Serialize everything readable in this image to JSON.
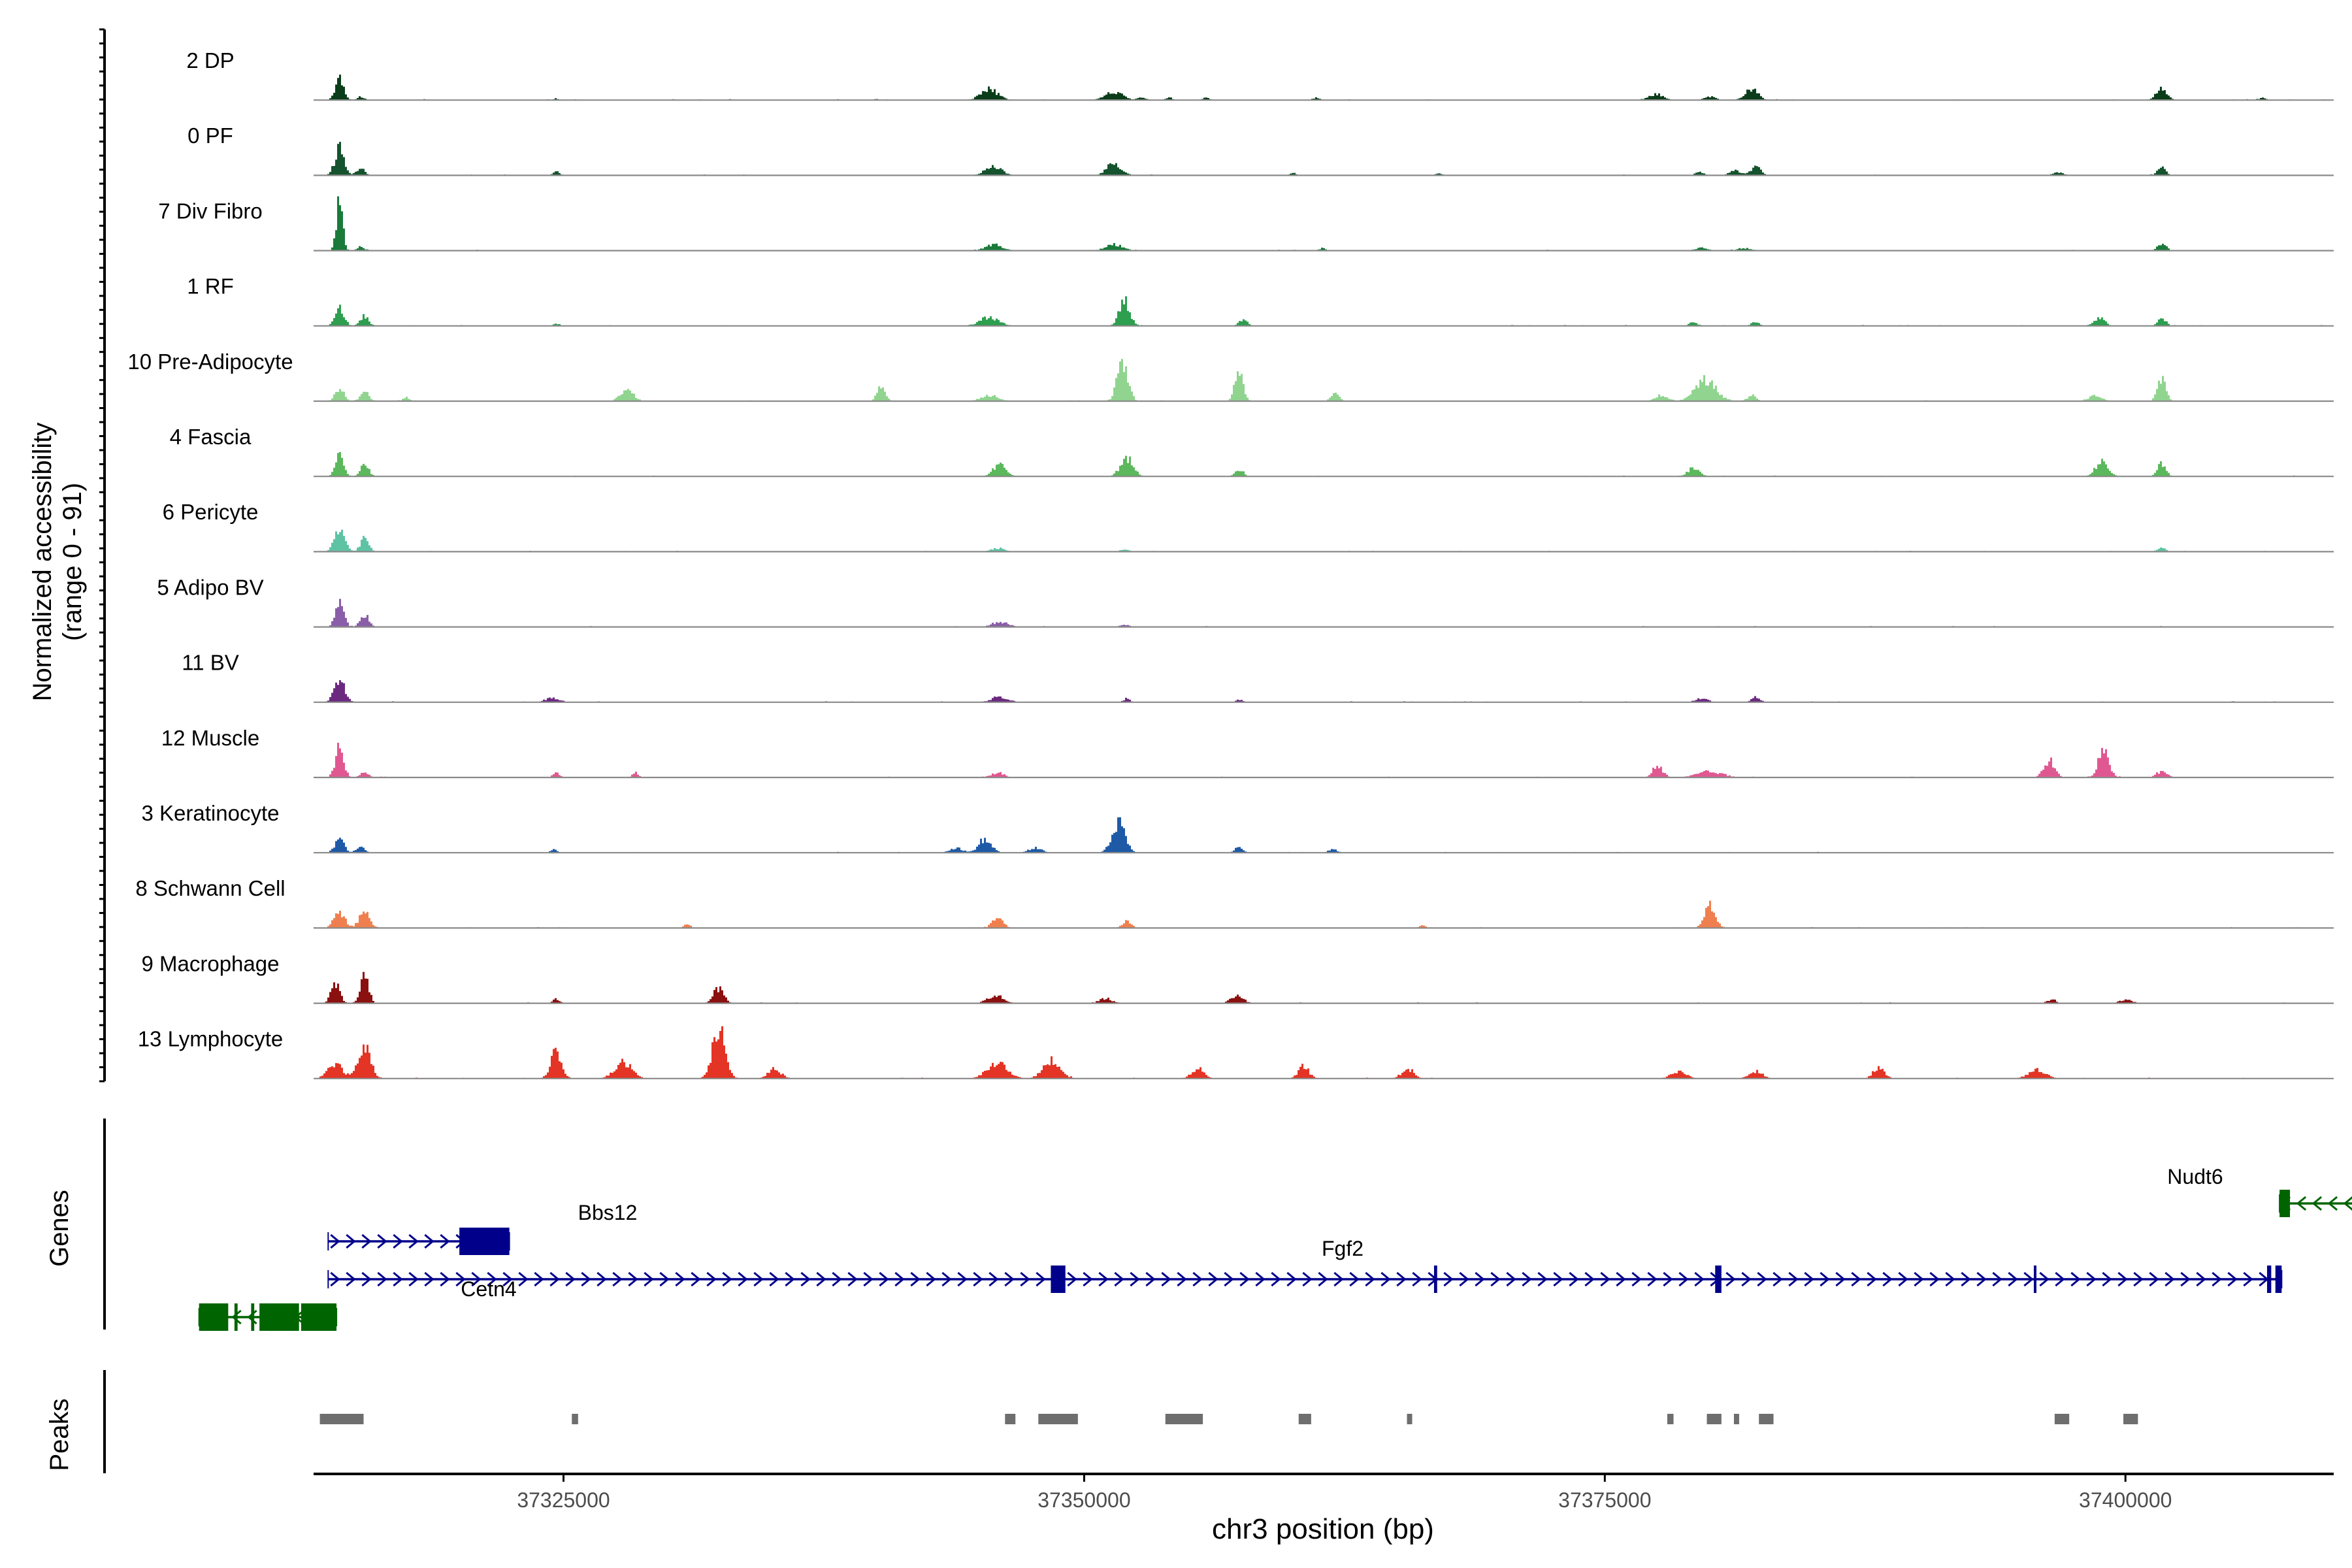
{
  "chart_data": {
    "type": "area",
    "title": "",
    "xlabel": "chr3 position (bp)",
    "ylabel_line1": "Normalized accessibility",
    "ylabel_line2": "(range 0 - 91)",
    "ylim": [
      0,
      91
    ],
    "xlim": [
      37313000,
      37410000
    ],
    "x_ticks": [
      37325000,
      37350000,
      37375000,
      37400000
    ],
    "x_tick_labels": [
      "37325000",
      "37350000",
      "37375000",
      "37400000"
    ],
    "panel_labels": {
      "genes": "Genes",
      "peaks": "Peaks"
    },
    "tracks": [
      {
        "name": "2 DP",
        "color": "#0b3d1a",
        "peaks": [
          [
            37314200,
            38,
            200
          ],
          [
            37315200,
            6,
            150
          ],
          [
            37324600,
            3,
            100
          ],
          [
            37340000,
            2,
            100
          ],
          [
            37345400,
            18,
            400
          ],
          [
            37351400,
            14,
            400
          ],
          [
            37352700,
            5,
            200
          ],
          [
            37354000,
            4,
            150
          ],
          [
            37355800,
            4,
            150
          ],
          [
            37361100,
            4,
            150
          ],
          [
            37377400,
            10,
            350
          ],
          [
            37380000,
            6,
            250
          ],
          [
            37382000,
            20,
            300
          ],
          [
            37401700,
            20,
            250
          ],
          [
            37406500,
            3,
            200
          ]
        ]
      },
      {
        "name": "0 PF",
        "color": "#14532d",
        "peaks": [
          [
            37314200,
            44,
            220
          ],
          [
            37315200,
            12,
            200
          ],
          [
            37324600,
            6,
            150
          ],
          [
            37345600,
            14,
            400
          ],
          [
            37351400,
            20,
            350
          ],
          [
            37360000,
            4,
            150
          ],
          [
            37367000,
            3,
            150
          ],
          [
            37379500,
            5,
            200
          ],
          [
            37381200,
            8,
            250
          ],
          [
            37382200,
            14,
            250
          ],
          [
            37396700,
            5,
            250
          ],
          [
            37401700,
            12,
            200
          ]
        ]
      },
      {
        "name": "7 Div Fibro",
        "color": "#1a7a3a",
        "peaks": [
          [
            37314200,
            80,
            150
          ],
          [
            37315200,
            6,
            150
          ],
          [
            37345600,
            10,
            400
          ],
          [
            37351400,
            10,
            400
          ],
          [
            37361400,
            4,
            150
          ],
          [
            37379600,
            5,
            300
          ],
          [
            37381700,
            4,
            300
          ],
          [
            37401700,
            12,
            200
          ]
        ]
      },
      {
        "name": "1 RF",
        "color": "#2e9e4f",
        "peaks": [
          [
            37314200,
            28,
            220
          ],
          [
            37315400,
            16,
            200
          ],
          [
            37324600,
            4,
            150
          ],
          [
            37345400,
            14,
            450
          ],
          [
            37351900,
            42,
            250
          ],
          [
            37357600,
            10,
            200
          ],
          [
            37379200,
            6,
            200
          ],
          [
            37382200,
            6,
            200
          ],
          [
            37398700,
            14,
            250
          ],
          [
            37401700,
            12,
            200
          ]
        ]
      },
      {
        "name": "10 Pre-Adipocyte",
        "color": "#90d490",
        "peaks": [
          [
            37314200,
            22,
            200
          ],
          [
            37315400,
            16,
            200
          ],
          [
            37317400,
            6,
            150
          ],
          [
            37328000,
            20,
            300
          ],
          [
            37340200,
            22,
            200
          ],
          [
            37345400,
            10,
            400
          ],
          [
            37351800,
            70,
            250
          ],
          [
            37357400,
            50,
            200
          ],
          [
            37362000,
            12,
            200
          ],
          [
            37377700,
            10,
            300
          ],
          [
            37379800,
            35,
            500
          ],
          [
            37382000,
            10,
            200
          ],
          [
            37398500,
            10,
            300
          ],
          [
            37401700,
            35,
            200
          ]
        ]
      },
      {
        "name": "4 Fascia",
        "color": "#5cb85c",
        "peaks": [
          [
            37314200,
            34,
            200
          ],
          [
            37315400,
            20,
            200
          ],
          [
            37345900,
            20,
            300
          ],
          [
            37352000,
            30,
            300
          ],
          [
            37357400,
            12,
            200
          ],
          [
            37379200,
            12,
            300
          ],
          [
            37398800,
            24,
            300
          ],
          [
            37401700,
            22,
            200
          ]
        ]
      },
      {
        "name": "6 Pericyte",
        "color": "#5ec3a4",
        "peaks": [
          [
            37314200,
            36,
            250
          ],
          [
            37315400,
            22,
            200
          ],
          [
            37345800,
            6,
            300
          ],
          [
            37351900,
            4,
            200
          ],
          [
            37401700,
            6,
            200
          ]
        ]
      },
      {
        "name": "5 Adipo BV",
        "color": "#8a5ea8",
        "peaks": [
          [
            37314200,
            44,
            200
          ],
          [
            37315400,
            20,
            200
          ],
          [
            37345900,
            8,
            400
          ],
          [
            37351900,
            4,
            200
          ]
        ]
      },
      {
        "name": "11 BV",
        "color": "#6b2a80",
        "peaks": [
          [
            37314200,
            40,
            250
          ],
          [
            37324400,
            8,
            300
          ],
          [
            37345900,
            8,
            400
          ],
          [
            37352000,
            6,
            150
          ],
          [
            37357400,
            4,
            150
          ],
          [
            37379600,
            6,
            300
          ],
          [
            37382200,
            8,
            200
          ]
        ]
      },
      {
        "name": "12 Muscle",
        "color": "#e05891",
        "peaks": [
          [
            37314200,
            50,
            200
          ],
          [
            37315400,
            8,
            200
          ],
          [
            37324600,
            8,
            150
          ],
          [
            37328400,
            8,
            150
          ],
          [
            37345800,
            8,
            300
          ],
          [
            37377500,
            18,
            250
          ],
          [
            37380000,
            10,
            600
          ],
          [
            37396300,
            30,
            250
          ],
          [
            37398900,
            44,
            250
          ],
          [
            37401700,
            10,
            250
          ]
        ]
      },
      {
        "name": "3 Keratinocyte",
        "color": "#1f5aa6",
        "peaks": [
          [
            37314200,
            26,
            200
          ],
          [
            37315200,
            10,
            200
          ],
          [
            37324500,
            6,
            150
          ],
          [
            37343800,
            8,
            300
          ],
          [
            37345200,
            24,
            300
          ],
          [
            37347600,
            8,
            300
          ],
          [
            37351600,
            52,
            300
          ],
          [
            37357400,
            8,
            200
          ],
          [
            37361900,
            6,
            200
          ]
        ]
      },
      {
        "name": "8 Schwann Cell",
        "color": "#f07f4f",
        "peaks": [
          [
            37314200,
            28,
            250
          ],
          [
            37315400,
            28,
            250
          ],
          [
            37330900,
            6,
            150
          ],
          [
            37345800,
            18,
            250
          ],
          [
            37352000,
            12,
            200
          ],
          [
            37366200,
            4,
            150
          ],
          [
            37380000,
            40,
            250
          ]
        ]
      },
      {
        "name": "9 Macrophage",
        "color": "#8b1010",
        "peaks": [
          [
            37314000,
            36,
            200
          ],
          [
            37315400,
            44,
            200
          ],
          [
            37324600,
            8,
            150
          ],
          [
            37332400,
            24,
            250
          ],
          [
            37345700,
            12,
            400
          ],
          [
            37351000,
            8,
            300
          ],
          [
            37357300,
            12,
            300
          ],
          [
            37396400,
            6,
            200
          ],
          [
            37400000,
            6,
            300
          ]
        ]
      },
      {
        "name": "13 Lymphocyte",
        "color": "#e33425",
        "peaks": [
          [
            37314000,
            24,
            350
          ],
          [
            37315400,
            50,
            300
          ],
          [
            37324600,
            50,
            250
          ],
          [
            37327800,
            28,
            400
          ],
          [
            37332400,
            82,
            300
          ],
          [
            37335100,
            16,
            300
          ],
          [
            37345800,
            24,
            500
          ],
          [
            37348400,
            30,
            400
          ],
          [
            37355400,
            16,
            300
          ],
          [
            37360500,
            20,
            250
          ],
          [
            37365500,
            16,
            300
          ],
          [
            37378500,
            12,
            350
          ],
          [
            37382200,
            12,
            300
          ],
          [
            37388100,
            18,
            250
          ],
          [
            37395700,
            14,
            400
          ]
        ]
      }
    ],
    "genes": [
      {
        "name": "Bbs12",
        "strand": "+",
        "color": "#00008b",
        "start": 37313700,
        "end": 37322400,
        "exons": [
          [
            37320000,
            37322400
          ]
        ],
        "row": 1,
        "show_label": true
      },
      {
        "name": "Fgf2",
        "strand": "+",
        "color": "#00008b",
        "start": 37313700,
        "end": 37407500,
        "exons": [
          [
            37348400,
            37349100
          ],
          [
            37366800,
            37366950
          ],
          [
            37380300,
            37380600
          ],
          [
            37395600,
            37395700
          ],
          [
            37406800,
            37407000
          ],
          [
            37407200,
            37407500
          ]
        ],
        "row": 2,
        "show_label": true
      },
      {
        "name": "Cetn4",
        "strand": "-",
        "color": "#006400",
        "start": 37307500,
        "end": 37314100,
        "exons": [
          [
            37307500,
            37308900
          ],
          [
            37309200,
            37309350
          ],
          [
            37310000,
            37310150
          ],
          [
            37310400,
            37312300
          ],
          [
            37312400,
            37314100
          ]
        ],
        "row": 3,
        "show_label": true
      },
      {
        "name": "Nudt6",
        "strand": "-",
        "color": "#006400",
        "start": 37407400,
        "end": 37412000,
        "exons": [
          [
            37407400,
            37407900
          ]
        ],
        "row": 0,
        "show_label": true
      }
    ],
    "peak_regions": [
      [
        37313300,
        37315400
      ],
      [
        37325400,
        37325700
      ],
      [
        37346200,
        37346700
      ],
      [
        37347800,
        37349700
      ],
      [
        37353900,
        37355700
      ],
      [
        37360300,
        37360900
      ],
      [
        37365500,
        37365700
      ],
      [
        37378000,
        37378300
      ],
      [
        37379900,
        37380600
      ],
      [
        37381200,
        37381400
      ],
      [
        37382400,
        37383100
      ],
      [
        37396600,
        37397300
      ],
      [
        37399900,
        37400600
      ]
    ]
  }
}
